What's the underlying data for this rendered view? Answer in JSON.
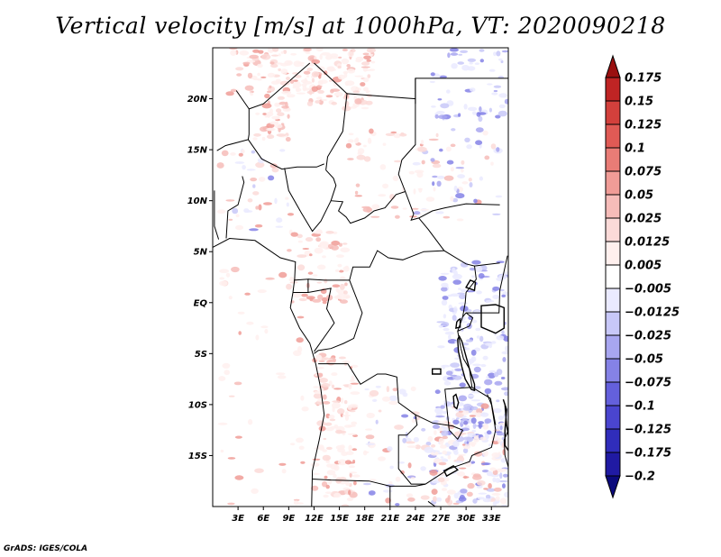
{
  "title": "Vertical velocity [m/s] at 1000hPa, VT: 2020090218",
  "credit": "GrADS: IGES/COLA",
  "map": {
    "lon_range": [
      0,
      35
    ],
    "lat_range": [
      -20,
      25
    ],
    "lat_ticks": [
      {
        "value": 20,
        "label": "20N"
      },
      {
        "value": 15,
        "label": "15N"
      },
      {
        "value": 10,
        "label": "10N"
      },
      {
        "value": 5,
        "label": "5N"
      },
      {
        "value": 0,
        "label": "EQ"
      },
      {
        "value": -5,
        "label": "5S"
      },
      {
        "value": -10,
        "label": "10S"
      },
      {
        "value": -15,
        "label": "15S"
      }
    ],
    "lon_ticks": [
      {
        "value": 3,
        "label": "3E"
      },
      {
        "value": 6,
        "label": "6E"
      },
      {
        "value": 9,
        "label": "9E"
      },
      {
        "value": 12,
        "label": "12E"
      },
      {
        "value": 15,
        "label": "15E"
      },
      {
        "value": 18,
        "label": "18E"
      },
      {
        "value": 21,
        "label": "21E"
      },
      {
        "value": 24,
        "label": "24E"
      },
      {
        "value": 27,
        "label": "27E"
      },
      {
        "value": 30,
        "label": "30E"
      },
      {
        "value": 33,
        "label": "33E"
      }
    ],
    "colors": {
      "water": "#ffffff",
      "border": "#000000"
    },
    "coastline": [
      [
        -0.5,
        5.2
      ],
      [
        2,
        6.3
      ],
      [
        5,
        6.1
      ],
      [
        8,
        4.4
      ],
      [
        9.8,
        4.0
      ],
      [
        9.7,
        2.3
      ],
      [
        9.5,
        1.0
      ],
      [
        9.2,
        -0.5
      ],
      [
        10.3,
        -2.5
      ],
      [
        11.5,
        -4.0
      ],
      [
        12.2,
        -6.0
      ],
      [
        12.8,
        -8.5
      ],
      [
        13.2,
        -11.0
      ],
      [
        12.6,
        -13.5
      ],
      [
        11.8,
        -16.5
      ],
      [
        11.7,
        -20.5
      ]
    ],
    "borders": [
      [
        [
          2.8,
          20.8
        ],
        [
          4.3,
          19.0
        ],
        [
          4.3,
          16.5
        ],
        [
          4.2,
          16.0
        ],
        [
          1.5,
          15.4
        ],
        [
          0.5,
          14.9
        ]
      ],
      [
        [
          4.3,
          19.0
        ],
        [
          6.0,
          19.5
        ],
        [
          11.5,
          23.5
        ]
      ],
      [
        [
          4.2,
          16.0
        ],
        [
          5.8,
          14.1
        ],
        [
          8.2,
          13.1
        ],
        [
          10.0,
          13.3
        ],
        [
          12.3,
          13.3
        ],
        [
          13.2,
          13.6
        ]
      ],
      [
        [
          12.0,
          23.5
        ],
        [
          15.9,
          20.5
        ],
        [
          15.4,
          16.8
        ],
        [
          13.6,
          14.3
        ],
        [
          13.4,
          13.0
        ]
      ],
      [
        [
          13.4,
          13.0
        ],
        [
          14.3,
          12.2
        ],
        [
          14.6,
          11.5
        ],
        [
          14.0,
          10.0
        ],
        [
          15.4,
          9.9
        ],
        [
          14.9,
          9.0
        ],
        [
          15.8,
          8.4
        ],
        [
          16.3,
          7.8
        ],
        [
          18.0,
          8.3
        ],
        [
          19.1,
          9.0
        ],
        [
          20.4,
          9.3
        ],
        [
          21.7,
          10.6
        ],
        [
          22.8,
          10.9
        ],
        [
          23.8,
          8.7
        ],
        [
          23.5,
          8.1
        ],
        [
          24.4,
          8.3
        ]
      ],
      [
        [
          15.9,
          20.5
        ],
        [
          24.0,
          20.0
        ],
        [
          24.0,
          19.5
        ],
        [
          24.0,
          15.5
        ],
        [
          22.4,
          14.0
        ],
        [
          22.0,
          12.6
        ],
        [
          22.8,
          10.9
        ]
      ],
      [
        [
          24.0,
          20.0
        ],
        [
          24.0,
          22.0
        ],
        [
          25.0,
          22.0
        ],
        [
          36.0,
          22.0
        ]
      ],
      [
        [
          24.0,
          19.5
        ],
        [
          24.0,
          22.0
        ]
      ],
      [
        [
          24.4,
          8.3
        ],
        [
          25.5,
          7.2
        ],
        [
          27.4,
          5.1
        ],
        [
          30.0,
          3.8
        ],
        [
          31.0,
          3.6
        ],
        [
          34.0,
          3.9
        ]
      ],
      [
        [
          24.4,
          8.3
        ],
        [
          26.0,
          9.0
        ],
        [
          27.5,
          9.3
        ],
        [
          30.0,
          9.7
        ],
        [
          34.0,
          9.6
        ]
      ],
      [
        [
          8.5,
          13.2
        ],
        [
          9.0,
          11.0
        ],
        [
          10.5,
          8.8
        ],
        [
          11.8,
          7.0
        ],
        [
          12.8,
          8.0
        ],
        [
          14.0,
          10.0
        ]
      ],
      [
        [
          1.6,
          6.3
        ],
        [
          1.8,
          9.0
        ],
        [
          3.0,
          9.6
        ],
        [
          3.7,
          11.8
        ],
        [
          3.5,
          12.4
        ]
      ],
      [
        [
          0.2,
          11.0
        ],
        [
          0.2,
          7.5
        ],
        [
          0.7,
          6.2
        ]
      ],
      [
        [
          9.6,
          2.2
        ],
        [
          11.3,
          2.3
        ],
        [
          11.3,
          1.0
        ],
        [
          9.5,
          1.0
        ]
      ],
      [
        [
          11.3,
          2.3
        ],
        [
          13.3,
          2.2
        ],
        [
          16.2,
          2.2
        ],
        [
          16.6,
          3.5
        ],
        [
          18.6,
          3.5
        ],
        [
          19.5,
          5.1
        ],
        [
          20.8,
          4.4
        ],
        [
          22.5,
          4.2
        ],
        [
          25.0,
          5.0
        ],
        [
          27.4,
          5.1
        ]
      ],
      [
        [
          11.3,
          1.0
        ],
        [
          14.0,
          1.4
        ],
        [
          13.5,
          -0.6
        ],
        [
          14.4,
          -2.0
        ],
        [
          12.0,
          -4.8
        ]
      ],
      [
        [
          16.2,
          2.2
        ],
        [
          17.7,
          -1.0
        ],
        [
          16.7,
          -3.5
        ],
        [
          15.5,
          -4.0
        ],
        [
          14.0,
          -4.5
        ],
        [
          12.5,
          -4.7
        ],
        [
          12.0,
          -5.0
        ]
      ],
      [
        [
          12.5,
          -6.0
        ],
        [
          16.0,
          -6.0
        ],
        [
          17.5,
          -8.0
        ],
        [
          19.5,
          -7.0
        ],
        [
          20.5,
          -7.0
        ],
        [
          21.8,
          -7.3
        ],
        [
          22.0,
          -9.8
        ],
        [
          24.0,
          -11.0
        ],
        [
          24.2,
          -12.0
        ],
        [
          23.0,
          -13.0
        ],
        [
          22.0,
          -13.0
        ],
        [
          22.0,
          -16.3
        ],
        [
          23.5,
          -17.8
        ],
        [
          25.2,
          -17.8
        ]
      ],
      [
        [
          11.8,
          -17.3
        ],
        [
          14.0,
          -17.4
        ],
        [
          18.5,
          -17.5
        ],
        [
          21.0,
          -18.0
        ],
        [
          24.0,
          -18.0
        ],
        [
          25.2,
          -17.8
        ]
      ],
      [
        [
          21.0,
          -18.0
        ],
        [
          21.0,
          -22.0
        ]
      ],
      [
        [
          25.2,
          -17.8
        ],
        [
          28.0,
          -16.3
        ],
        [
          30.4,
          -15.6
        ],
        [
          30.7,
          -15.0
        ],
        [
          33.0,
          -14.2
        ],
        [
          33.5,
          -12.5
        ],
        [
          33.0,
          -10.0
        ],
        [
          32.5,
          -9.0
        ]
      ],
      [
        [
          24.0,
          -11.0
        ],
        [
          26.0,
          -11.8
        ],
        [
          28.4,
          -12.1
        ],
        [
          29.6,
          -12.5
        ],
        [
          29.0,
          -13.4
        ],
        [
          28.0,
          -12.5
        ],
        [
          27.5,
          -8.5
        ],
        [
          28.8,
          -8.4
        ],
        [
          30.7,
          -8.3
        ]
      ],
      [
        [
          30.7,
          -8.3
        ],
        [
          32.9,
          -9.4
        ],
        [
          33.5,
          -12.0
        ]
      ],
      [
        [
          29.4,
          -4.5
        ],
        [
          29.7,
          -5.5
        ],
        [
          30.4,
          -6.5
        ],
        [
          30.7,
          -8.3
        ]
      ],
      [
        [
          29.4,
          -4.5
        ],
        [
          29.0,
          -2.8
        ],
        [
          29.6,
          -1.4
        ],
        [
          30.0,
          -1.0
        ],
        [
          30.7,
          -1.0
        ]
      ],
      [
        [
          29.6,
          -1.4
        ],
        [
          29.9,
          0.0
        ],
        [
          30.0,
          1.0
        ],
        [
          31.2,
          2.3
        ],
        [
          31.0,
          3.6
        ]
      ],
      [
        [
          30.7,
          -1.0
        ],
        [
          33.9,
          -1.0
        ],
        [
          34.0,
          1.2
        ],
        [
          34.9,
          4.6
        ]
      ],
      [
        [
          30.0,
          -1.0
        ],
        [
          30.8,
          -1.5
        ],
        [
          30.4,
          -2.3
        ],
        [
          29.0,
          -2.8
        ]
      ],
      [
        [
          35.5,
          -11.5
        ],
        [
          34.5,
          -13.5
        ],
        [
          34.6,
          -15.0
        ],
        [
          35.3,
          -17.0
        ],
        [
          35.0,
          -17.8
        ]
      ],
      [
        [
          25.5,
          -19.5
        ],
        [
          28.0,
          -21.0
        ],
        [
          30.0,
          -22.3
        ],
        [
          31.5,
          -22.4
        ]
      ]
    ],
    "lakes": [
      [
        [
          29.2,
          -3.3
        ],
        [
          29.5,
          -3.8
        ],
        [
          29.9,
          -5.0
        ],
        [
          30.4,
          -6.5
        ],
        [
          31.0,
          -8.0
        ],
        [
          31.0,
          -8.6
        ],
        [
          30.6,
          -8.5
        ],
        [
          29.9,
          -7.5
        ],
        [
          29.5,
          -6.3
        ],
        [
          29.1,
          -4.8
        ],
        [
          29.0,
          -3.6
        ]
      ],
      [
        [
          29.1,
          -1.7
        ],
        [
          29.3,
          -1.6
        ],
        [
          29.3,
          -2.4
        ],
        [
          28.8,
          -2.5
        ],
        [
          28.9,
          -1.9
        ]
      ],
      [
        [
          31.8,
          -0.3
        ],
        [
          33.5,
          -0.2
        ],
        [
          34.5,
          -0.5
        ],
        [
          34.5,
          -2.5
        ],
        [
          33.5,
          -3.0
        ],
        [
          31.8,
          -2.4
        ]
      ],
      [
        [
          34.4,
          -9.5
        ],
        [
          34.8,
          -10.5
        ],
        [
          34.6,
          -12.5
        ],
        [
          34.6,
          -14.0
        ],
        [
          35.0,
          -14.5
        ],
        [
          35.2,
          -14.0
        ],
        [
          34.8,
          -12.0
        ],
        [
          34.6,
          -10.0
        ]
      ],
      [
        [
          28.5,
          -9.2
        ],
        [
          28.8,
          -9.0
        ],
        [
          29.1,
          -9.8
        ],
        [
          28.9,
          -10.4
        ],
        [
          28.6,
          -10.2
        ]
      ],
      [
        [
          27.4,
          -16.5
        ],
        [
          28.5,
          -16.0
        ],
        [
          29.0,
          -16.4
        ],
        [
          27.7,
          -17.0
        ]
      ],
      [
        [
          30.0,
          1.5
        ],
        [
          31.0,
          1.2
        ],
        [
          31.1,
          2.0
        ],
        [
          30.5,
          2.2
        ]
      ],
      [
        [
          26.0,
          -6.5
        ],
        [
          27.0,
          -6.5
        ],
        [
          27.0,
          -7.0
        ],
        [
          26.0,
          -7.0
        ]
      ]
    ]
  },
  "colorbar": {
    "labels": [
      "0.175",
      "0.15",
      "0.125",
      "0.1",
      "0.075",
      "0.05",
      "0.025",
      "0.0125",
      "0.005",
      "−0.005",
      "−0.0125",
      "−0.025",
      "−0.05",
      "−0.075",
      "−0.1",
      "−0.125",
      "−0.175",
      "−0.2"
    ],
    "colors": [
      "#9a1010",
      "#bf2424",
      "#d3403c",
      "#e05a55",
      "#e97c76",
      "#f09c97",
      "#f6bcb9",
      "#fbdad8",
      "#fff0ee",
      "#ffffff",
      "#eaeaff",
      "#c8c8f8",
      "#a8a6f0",
      "#8582e6",
      "#6460dc",
      "#4a45cf",
      "#302dbb",
      "#201aa3",
      "#0b0a7c"
    ]
  }
}
